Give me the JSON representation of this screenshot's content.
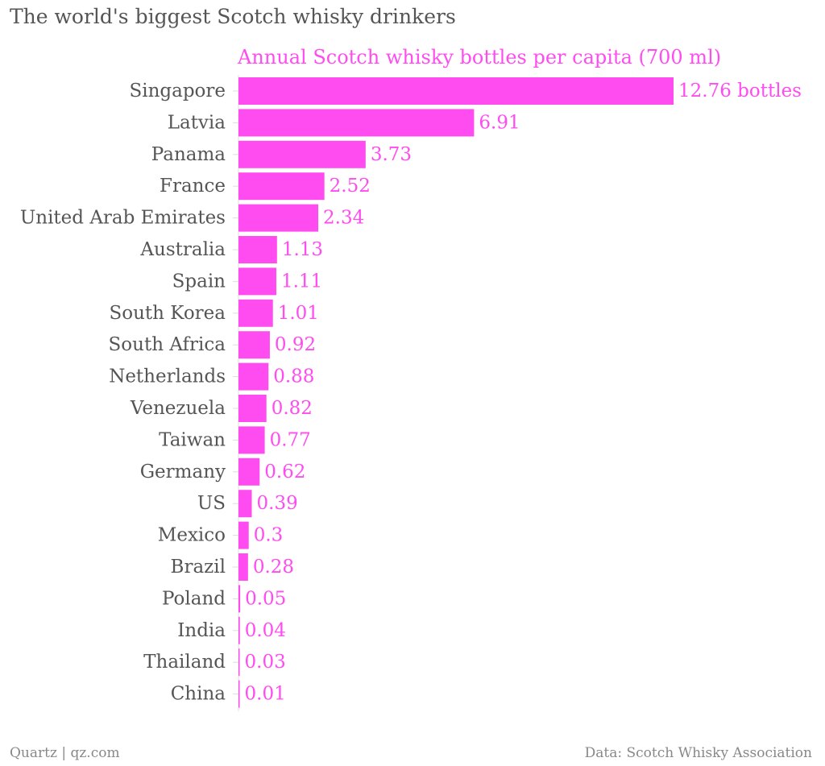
{
  "header": {
    "title": "The world's biggest Scotch whisky drinkers"
  },
  "footer": {
    "source_left": "Quartz | qz.com",
    "source_right": "Data: Scotch Whisky Association"
  },
  "colors": {
    "bar": "#ff4cf0",
    "text": "#555555",
    "axis": "#dddddd"
  },
  "chart_data": {
    "type": "bar",
    "orientation": "horizontal",
    "title": "The world's biggest Scotch whisky drinkers",
    "series_label": "Annual Scotch whisky bottles per capita (700 ml)",
    "first_value_suffix": " bottles",
    "categories": [
      "Singapore",
      "Latvia",
      "Panama",
      "France",
      "United Arab Emirates",
      "Australia",
      "Spain",
      "South Korea",
      "South Africa",
      "Netherlands",
      "Venezuela",
      "Taiwan",
      "Germany",
      "US",
      "Mexico",
      "Brazil",
      "Poland",
      "India",
      "Thailand",
      "China"
    ],
    "values": [
      12.76,
      6.91,
      3.73,
      2.52,
      2.34,
      1.13,
      1.11,
      1.01,
      0.92,
      0.88,
      0.82,
      0.77,
      0.62,
      0.39,
      0.3,
      0.28,
      0.05,
      0.04,
      0.03,
      0.01
    ],
    "value_labels": [
      "12.76",
      "6.91",
      "3.73",
      "2.52",
      "2.34",
      "1.13",
      "1.11",
      "1.01",
      "0.92",
      "0.88",
      "0.82",
      "0.77",
      "0.62",
      "0.39",
      "0.3",
      "0.28",
      "0.05",
      "0.04",
      "0.03",
      "0.01"
    ],
    "xlim": [
      0,
      12.76
    ],
    "legend": "none",
    "grid": false
  }
}
